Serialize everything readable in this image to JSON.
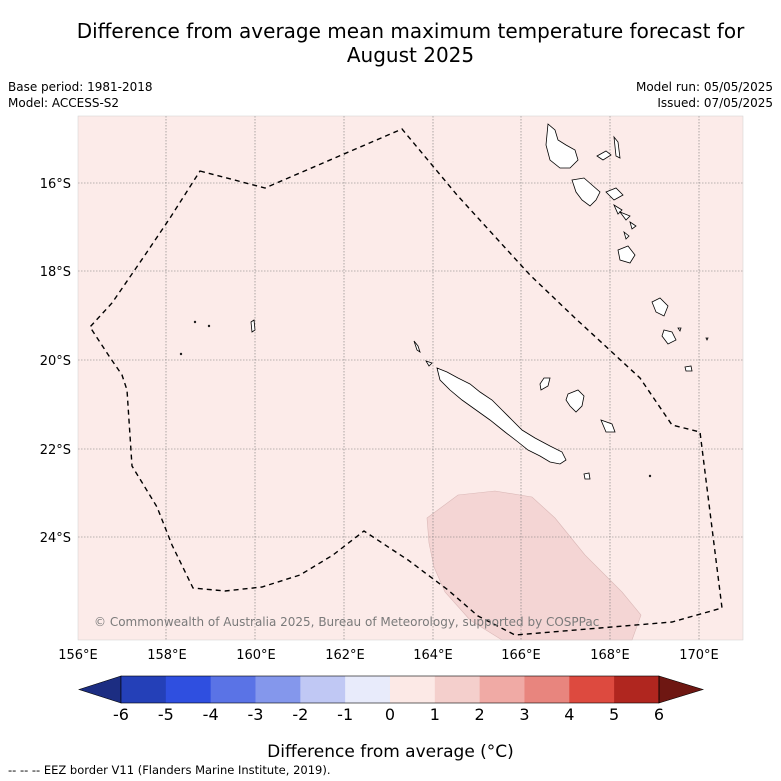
{
  "title_line1": "Difference from average mean maximum temperature forecast for",
  "title_line2": "August 2025",
  "base_period": "Base period: 1981-2018",
  "model": "Model: ACCESS-S2",
  "model_run": "Model run: 05/05/2025",
  "issued": "Issued: 07/05/2025",
  "copyright": "© Commonwealth of Australia 2025, Bureau of Meteorology, supported by COSPPac",
  "colorbar_label": "Difference from average (°C)",
  "footnote": "-- -- -- EEZ border V11 (Flanders Marine Institute, 2019).",
  "lon_ticks": [
    "156°E",
    "158°E",
    "160°E",
    "162°E",
    "164°E",
    "166°E",
    "168°E",
    "170°E"
  ],
  "lat_ticks": [
    "16°S",
    "18°S",
    "20°S",
    "22°S",
    "24°S"
  ],
  "colorbar": {
    "ticks": [
      "-6",
      "-5",
      "-4",
      "-3",
      "-2",
      "-1",
      "0",
      "1",
      "2",
      "3",
      "4",
      "5",
      "6"
    ],
    "colors": [
      "#1c2d82",
      "#2440b8",
      "#2f4fe0",
      "#5a73e6",
      "#8497ec",
      "#c0c8f4",
      "#e8ebfb",
      "#fce9e6",
      "#f4cfcc",
      "#f0aaa5",
      "#e8857e",
      "#dd4a3f",
      "#b0261f",
      "#6e1712"
    ]
  },
  "map_colors": {
    "background_anomaly": "#fcebe9",
    "higher_anomaly": "#f4d5d4"
  }
}
